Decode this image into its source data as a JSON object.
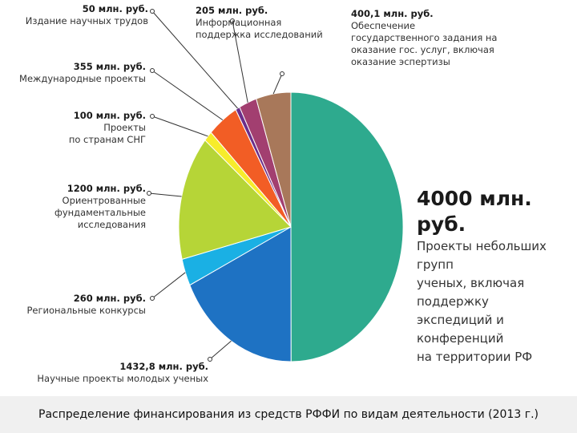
{
  "caption": "Распределение финансирования из средств РФФИ по видам деятельности (2013 г.)",
  "chart_data": {
    "type": "pie",
    "unit": "млн. руб.",
    "slices": [
      {
        "amount_label": "4000 млн. руб.",
        "value": 4000,
        "label_lines": [
          "Проекты небольших групп",
          "ученых, включая поддержку",
          "экспедиций и конференций",
          "на территории РФ"
        ],
        "color": "#2eaa8e"
      },
      {
        "amount_label": "1432,8 млн. руб.",
        "value": 1432.8,
        "label_lines": [
          "Научные проекты молодых ученых"
        ],
        "color": "#1e72c3"
      },
      {
        "amount_label": "260 млн. руб.",
        "value": 260,
        "label_lines": [
          "Региональные конкурсы"
        ],
        "color": "#1ab0e4"
      },
      {
        "amount_label": "1200 млн. руб.",
        "value": 1200,
        "label_lines": [
          "Ориентрованные",
          "фундаментальные исследования"
        ],
        "color": "#b6d537"
      },
      {
        "amount_label": "100  млн. руб.",
        "value": 100,
        "label_lines": [
          "Проекты",
          "по странам СНГ"
        ],
        "color": "#f7ec2b"
      },
      {
        "amount_label": "355 млн. руб.",
        "value": 355,
        "label_lines": [
          "Международные проекты"
        ],
        "color": "#f25d25"
      },
      {
        "amount_label": "50 млн. руб.",
        "value": 50,
        "label_lines": [
          "Издание научных трудов"
        ],
        "color": "#6b2e8a"
      },
      {
        "amount_label": "205 млн. руб.",
        "value": 205,
        "label_lines": [
          "Информационная",
          "поддержка исследований"
        ],
        "color": "#a23f70"
      },
      {
        "amount_label": "400,1 млн. руб.",
        "value": 400.1,
        "label_lines": [
          "Обеспечение",
          "государственного задания на",
          "оказание гос. услуг, включая",
          "оказание эспертизы"
        ],
        "color": "#a8785a"
      }
    ]
  }
}
